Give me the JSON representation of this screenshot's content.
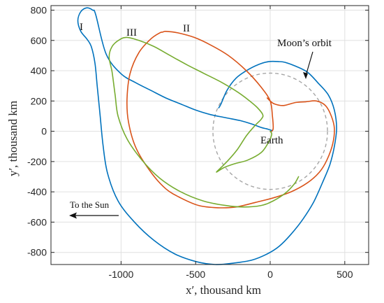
{
  "chart_data": {
    "type": "line",
    "title": "",
    "xlabel": "x′, thousand km",
    "ylabel": "y′, thousand km",
    "xlim": [
      -1470,
      660
    ],
    "ylim": [
      -880,
      830
    ],
    "xticks": [
      -1000,
      -500,
      0,
      500
    ],
    "xtick_labels": [
      "-1000",
      "-500",
      "0",
      "500"
    ],
    "yticks": [
      -800,
      -600,
      -400,
      -200,
      0,
      200,
      400,
      600,
      800
    ],
    "ytick_labels": [
      "-800",
      "-600",
      "-400",
      "-200",
      "0",
      "200",
      "400",
      "600",
      "800"
    ],
    "grid": true,
    "colors": {
      "I": "#0072BD",
      "II": "#D95319",
      "III": "#77AC30",
      "moon": "#a6a6a6",
      "axes": "#262626",
      "grid": "#e0e0e0"
    },
    "series": [
      {
        "name": "I",
        "color": "#0072BD",
        "x": [
          -345,
          -330,
          -290,
          -230,
          -160,
          -80,
          -10,
          60,
          100,
          170,
          250,
          320,
          390,
          430,
          445,
          430,
          400,
          350,
          290,
          220,
          140,
          60,
          -20,
          -120,
          -240,
          -370,
          -500,
          -640,
          -780,
          -910,
          -1020,
          -1090,
          -1120,
          -1140,
          -1160,
          -1175,
          -1200,
          -1230,
          -1270,
          -1290,
          -1270,
          -1230,
          -1190,
          -1170,
          -1100,
          -1000,
          -900,
          -800,
          -700,
          -600,
          -500,
          -400,
          -300,
          -200,
          -130,
          -60,
          -20,
          10,
          5
        ],
        "y": [
          155,
          180,
          270,
          350,
          400,
          440,
          460,
          460,
          455,
          430,
          390,
          320,
          240,
          140,
          20,
          -100,
          -220,
          -340,
          -470,
          -580,
          -680,
          -760,
          -810,
          -850,
          -870,
          -880,
          -860,
          -810,
          -720,
          -600,
          -460,
          -280,
          -100,
          100,
          300,
          450,
          560,
          610,
          660,
          730,
          790,
          815,
          800,
          770,
          510,
          380,
          320,
          270,
          220,
          180,
          140,
          110,
          90,
          70,
          50,
          25,
          15,
          5,
          0
        ]
      },
      {
        "name": "II",
        "color": "#D95319",
        "x": [
          10,
          20,
          15,
          0,
          -60,
          -160,
          -280,
          -400,
          -510,
          -620,
          -700,
          -720,
          -740,
          -800,
          -880,
          -940,
          -960,
          -950,
          -900,
          -800,
          -700,
          -600,
          -480,
          -350,
          -230,
          -100,
          20,
          140,
          250,
          330,
          380,
          420,
          430,
          410,
          370,
          310,
          240,
          170,
          90,
          30,
          0,
          -20
        ],
        "y": [
          0,
          20,
          100,
          200,
          290,
          400,
          500,
          570,
          620,
          650,
          660,
          655,
          650,
          610,
          520,
          380,
          210,
          60,
          -110,
          -270,
          -380,
          -440,
          -490,
          -505,
          -500,
          -470,
          -440,
          -400,
          -340,
          -270,
          -190,
          -80,
          20,
          100,
          170,
          200,
          195,
          190,
          170,
          180,
          200,
          220
        ]
      },
      {
        "name": "III",
        "color": "#77AC30",
        "x": [
          190,
          160,
          100,
          20,
          -60,
          -180,
          -300,
          -450,
          -600,
          -740,
          -860,
          -960,
          -1020,
          -1040,
          -1060,
          -1080,
          -1060,
          -1010,
          -960,
          -880,
          -780,
          -680,
          -560,
          -440,
          -320,
          -220,
          -150,
          -90,
          -50,
          -60,
          -100,
          -160,
          -220,
          -280,
          -330,
          -360,
          -310,
          -240,
          -150,
          -60,
          -10,
          10,
          0
        ],
        "y": [
          -300,
          -350,
          -410,
          -460,
          -490,
          -500,
          -490,
          -460,
          -400,
          -310,
          -190,
          -50,
          100,
          240,
          390,
          490,
          560,
          605,
          620,
          600,
          560,
          505,
          440,
          380,
          320,
          260,
          210,
          160,
          110,
          80,
          40,
          -30,
          -120,
          -190,
          -240,
          -270,
          -240,
          -215,
          -190,
          -140,
          -70,
          -20,
          0
        ]
      }
    ],
    "moon_orbit": {
      "label": "Moon’s orbit",
      "radius": 384
    },
    "annotations": {
      "label_I": "I",
      "label_II": "II",
      "label_III": "III",
      "earth": "Earth",
      "to_sun": "To the Sun"
    }
  }
}
